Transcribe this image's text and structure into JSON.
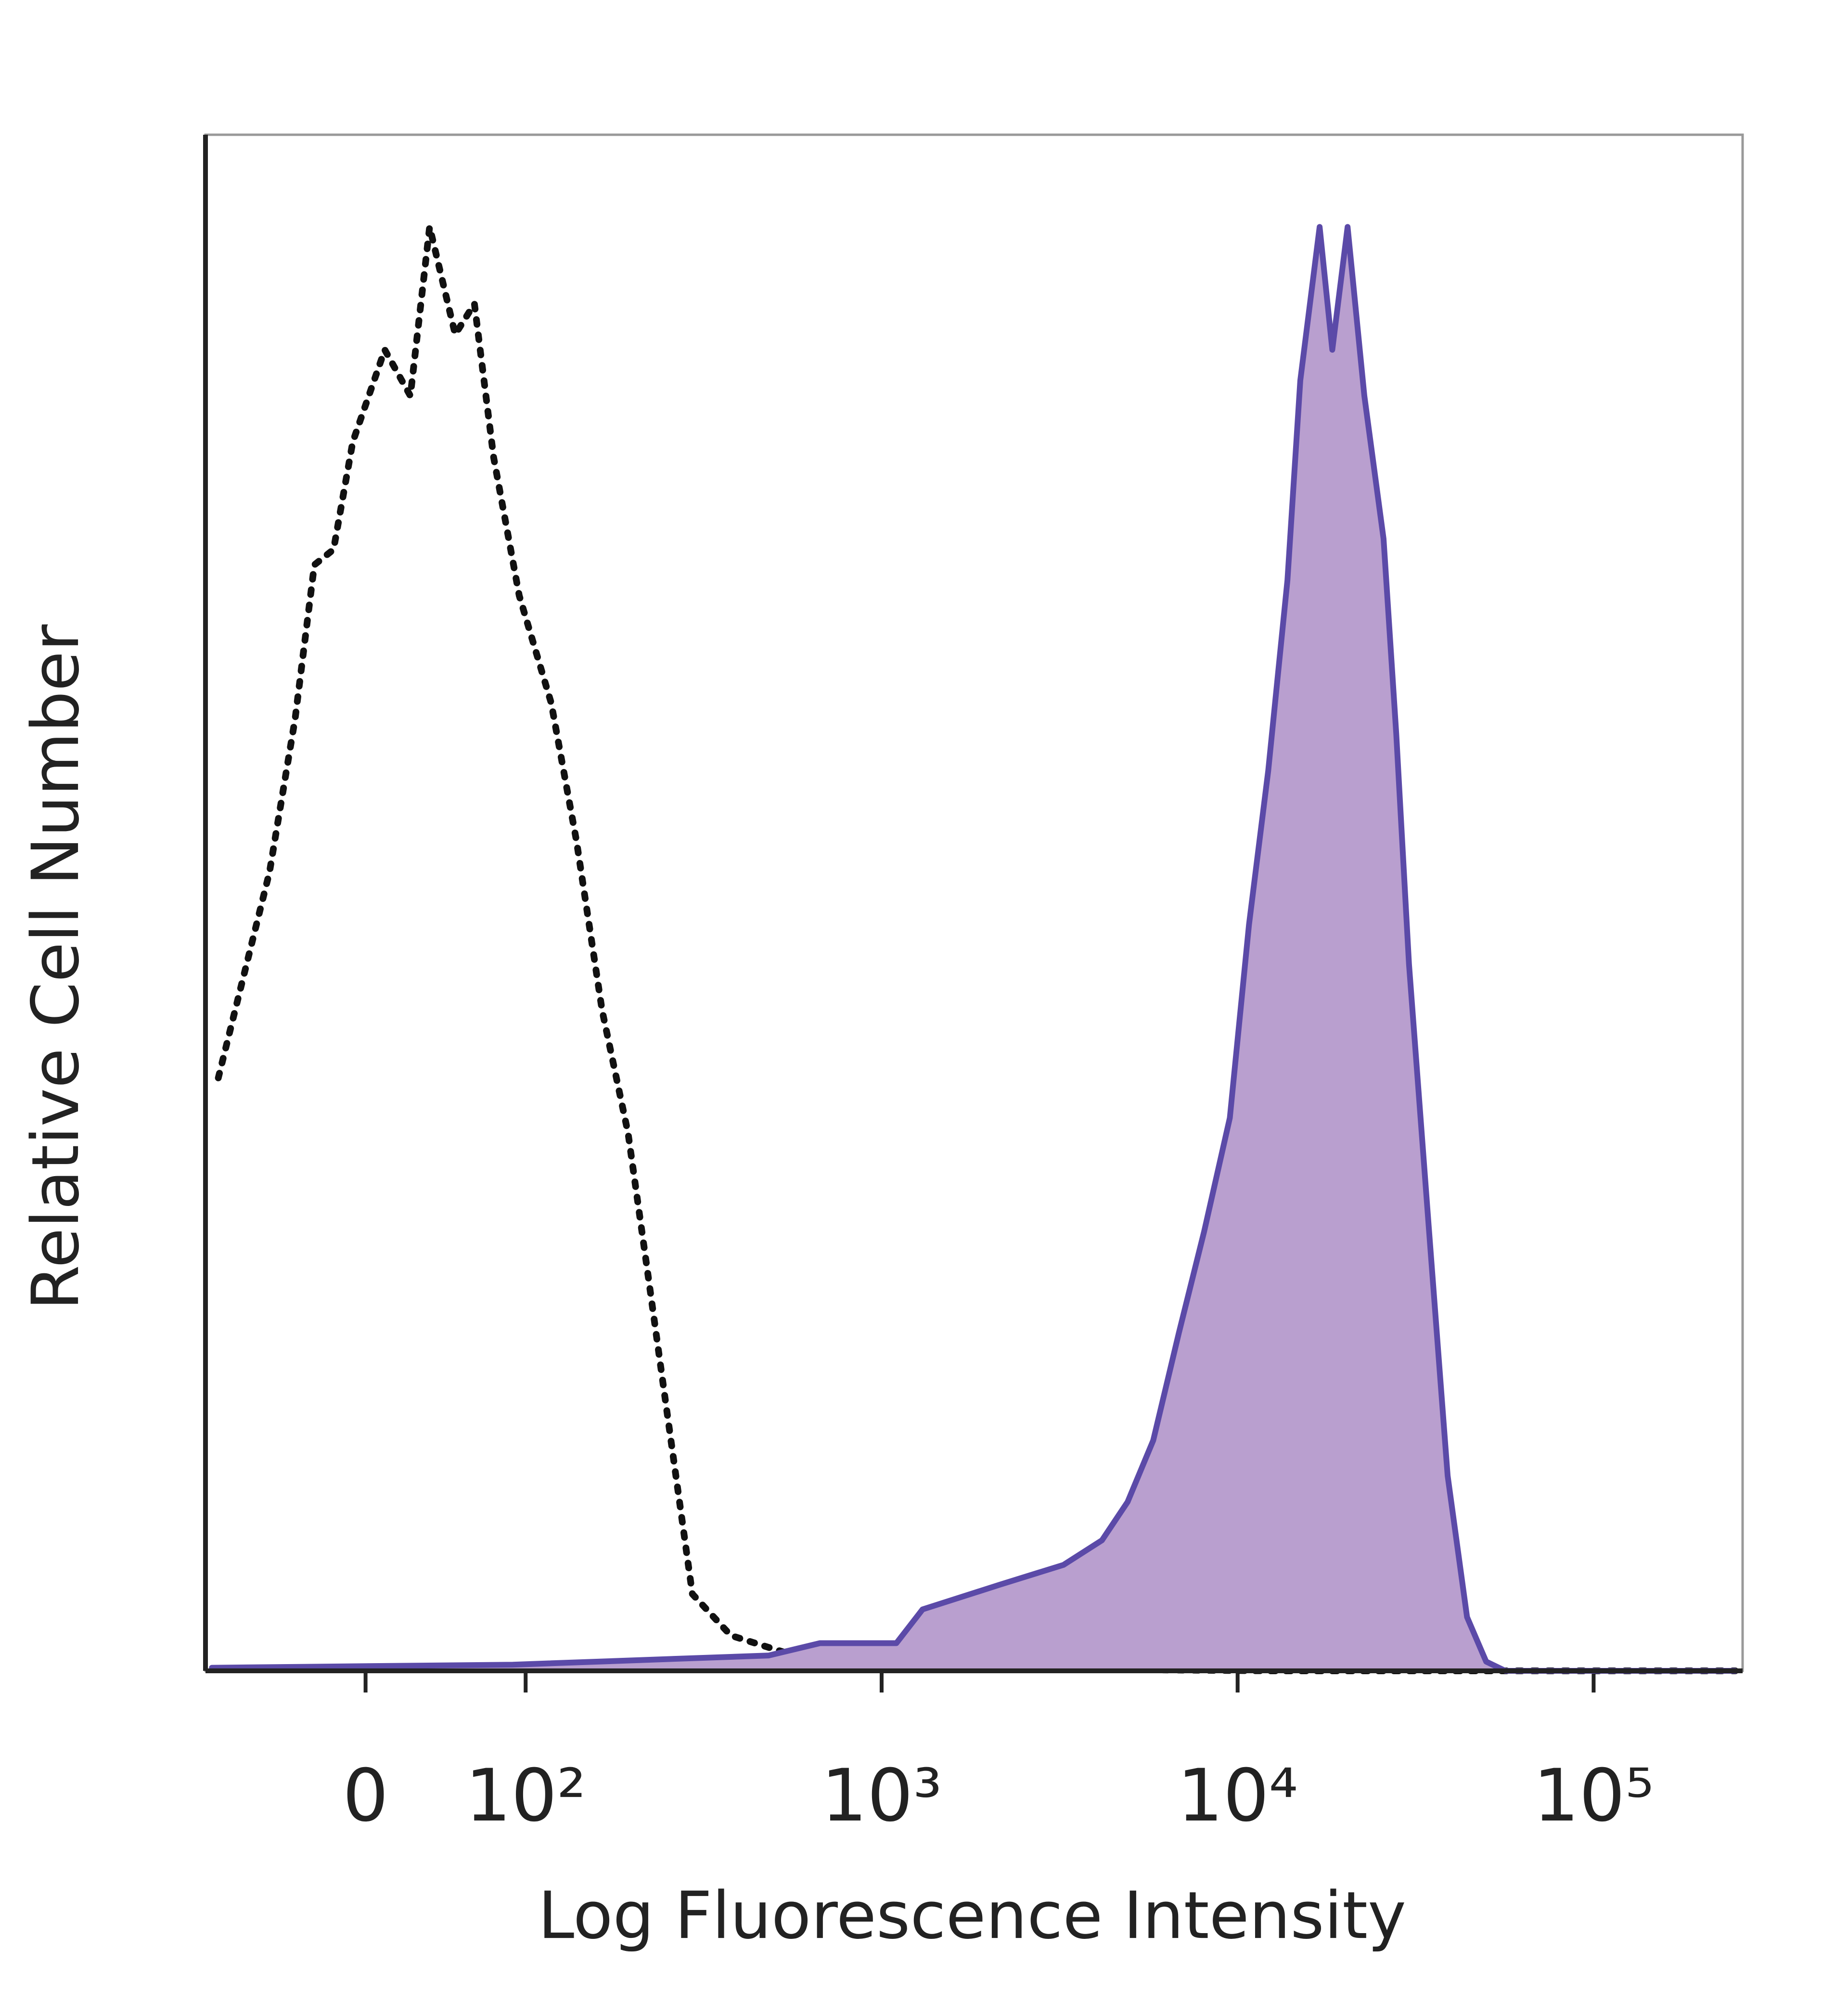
{
  "chart_data": {
    "type": "histogram-overlay",
    "xlabel": "Log Fluorescence Intensity",
    "ylabel": "Relative Cell Number",
    "xscale": "biexponential",
    "xlim": [
      -100,
      262144
    ],
    "ylim": [
      0,
      100
    ],
    "xticks": [
      0,
      {
        "value": 100,
        "label": "10²"
      },
      {
        "value": 1000,
        "label": "10³"
      },
      {
        "value": 10000,
        "label": "10⁴"
      },
      {
        "value": 100000,
        "label": "10⁵"
      }
    ],
    "series": [
      {
        "color": "#111111",
        "style": "dotted",
        "x": [
          -92,
          -76,
          -60,
          -44,
          -32,
          -20,
          -8,
          12,
          28,
          40,
          56,
          68,
          80,
          96,
          118,
          139,
          164,
          194,
          220,
          249,
          294,
          377,
          569,
          1100,
          12600,
          250000
        ],
        "values": [
          38.6,
          45.3,
          52,
          62,
          72,
          73,
          80,
          86,
          83,
          94,
          87,
          89,
          79,
          70,
          63,
          54,
          43,
          35,
          26,
          17,
          5,
          2.3,
          1,
          0.2,
          0,
          0
        ]
      },
      {
        "color": "#5b4aa8",
        "fill": "#b99fcf",
        "style": "filled",
        "x": [
          -96,
          92,
          482,
          671,
          1100,
          1303,
          2143,
          3243,
          4159,
          4909,
          5794,
          6839,
          8054,
          9508,
          10765,
          12190,
          13804,
          15000,
          17000,
          18450,
          20370,
          22700,
          25700,
          27900,
          30300,
          34400,
          38900,
          44100,
          49900,
          56500,
          250000
        ],
        "values": [
          0.2,
          0.4,
          1,
          1.8,
          1.8,
          4,
          5.6,
          6.9,
          8.5,
          11,
          15,
          22,
          28.6,
          36,
          48.6,
          58.6,
          71,
          84,
          94,
          86,
          94,
          83,
          73.7,
          61,
          46,
          29,
          12.7,
          3.5,
          0.6,
          0,
          0
        ]
      }
    ]
  }
}
